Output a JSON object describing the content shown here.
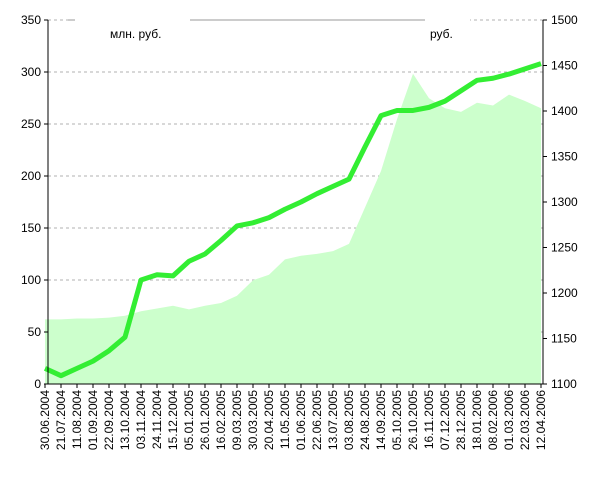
{
  "chart_data": {
    "type": "line",
    "y_label": "млн. руб.",
    "y2_label": "руб.",
    "categories": [
      "30.06.2004",
      "21.07.2004",
      "11.08.2004",
      "01.09.2004",
      "22.09.2004",
      "13.10.2004",
      "03.11.2004",
      "24.11.2004",
      "15.12.2004",
      "05.01.2005",
      "26.01.2005",
      "16.02.2005",
      "09.03.2005",
      "30.03.2005",
      "20.04.2005",
      "11.05.2005",
      "01.06.2005",
      "22.06.2005",
      "13.07.2005",
      "03.08.2005",
      "24.08.2005",
      "14.09.2005",
      "05.10.2005",
      "26.10.2005",
      "16.11.2005",
      "07.12.2005",
      "28.12.2005",
      "18.01.2006",
      "08.02.2006",
      "01.03.2006",
      "22.03.2006",
      "12.04.2006"
    ],
    "series": [
      {
        "name": "руб.",
        "kind": "area",
        "axis": "y2",
        "color": "#ccffcc",
        "values": [
          1171,
          1171,
          1172,
          1172,
          1173,
          1175,
          1180,
          1183,
          1186,
          1182,
          1186,
          1189,
          1197,
          1214,
          1220,
          1237,
          1241,
          1243,
          1246,
          1254,
          1294,
          1334,
          1391,
          1441,
          1414,
          1403,
          1399,
          1409,
          1406,
          1418,
          1411,
          1403
        ]
      },
      {
        "name": "млн. руб.",
        "kind": "line",
        "color": "#33ee33",
        "values": [
          15,
          8,
          15,
          22,
          32,
          45,
          100,
          105,
          104,
          118,
          125,
          138,
          152,
          155,
          160,
          168,
          175,
          183,
          190,
          197,
          228,
          258,
          263,
          263,
          266,
          272,
          282,
          292,
          294,
          298,
          303,
          308
        ]
      }
    ],
    "ylim": [
      0,
      350
    ],
    "yticks": [
      0,
      50,
      100,
      150,
      200,
      250,
      300,
      350
    ],
    "y2lim": [
      1100,
      1500
    ],
    "y2ticks": [
      1100,
      1150,
      1200,
      1250,
      1300,
      1350,
      1400,
      1450,
      1500
    ],
    "grid": true
  }
}
